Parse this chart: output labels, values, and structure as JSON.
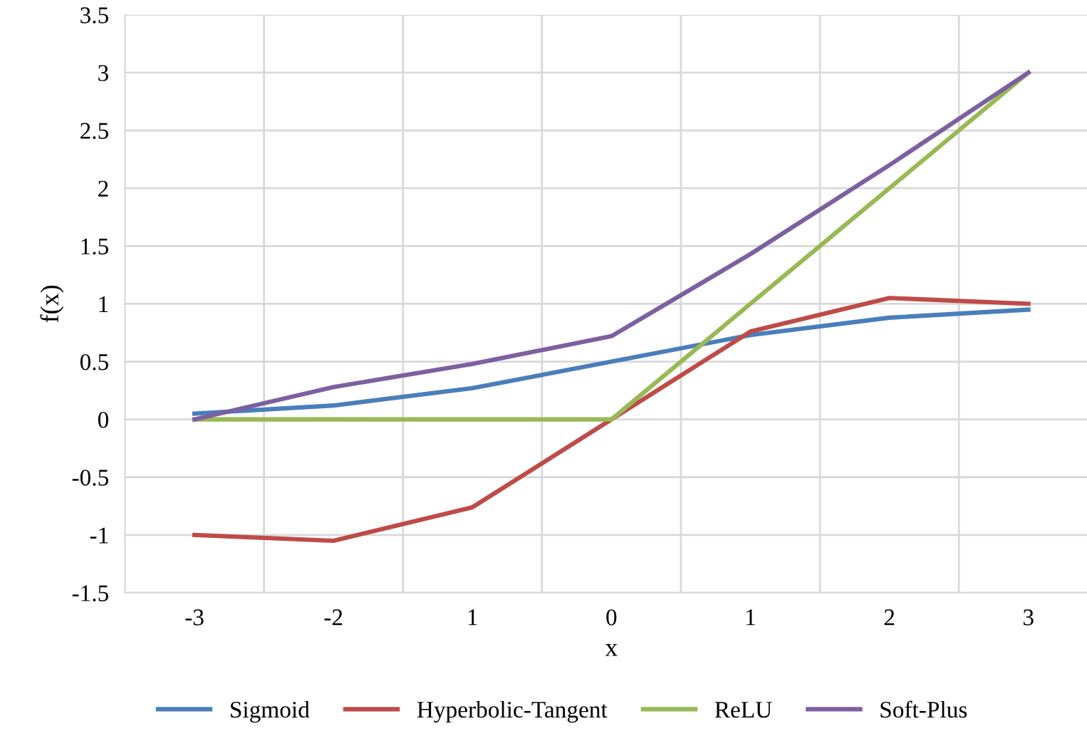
{
  "chart_data": {
    "type": "line",
    "xlabel": "x",
    "ylabel": "f(x)",
    "categories": [
      "-3",
      "-2",
      "1",
      "0",
      "1",
      "2",
      "3"
    ],
    "series": [
      {
        "name": "Sigmoid",
        "color": "#4a7ebb",
        "values": [
          0.05,
          0.12,
          0.27,
          0.5,
          0.73,
          0.88,
          0.95
        ]
      },
      {
        "name": "Hyperbolic-Tangent",
        "color": "#be4b48",
        "values": [
          -1.0,
          -1.05,
          -0.76,
          0,
          0.76,
          1.05,
          1.0
        ]
      },
      {
        "name": "ReLU",
        "color": "#98b954",
        "values": [
          0,
          0,
          0,
          0,
          1,
          2,
          3
        ]
      },
      {
        "name": "Soft-Plus",
        "color": "#7d60a0",
        "values": [
          0,
          0.28,
          0.48,
          0.72,
          1.43,
          2.2,
          3.0
        ]
      }
    ],
    "ylim": [
      -1.5,
      3.5
    ],
    "yticks": [
      -1.5,
      -1,
      -0.5,
      0,
      0.5,
      1,
      1.5,
      2,
      2.5,
      3,
      3.5
    ],
    "grid": true,
    "legend": "bottom",
    "marker": "none",
    "line_style": "solid"
  }
}
